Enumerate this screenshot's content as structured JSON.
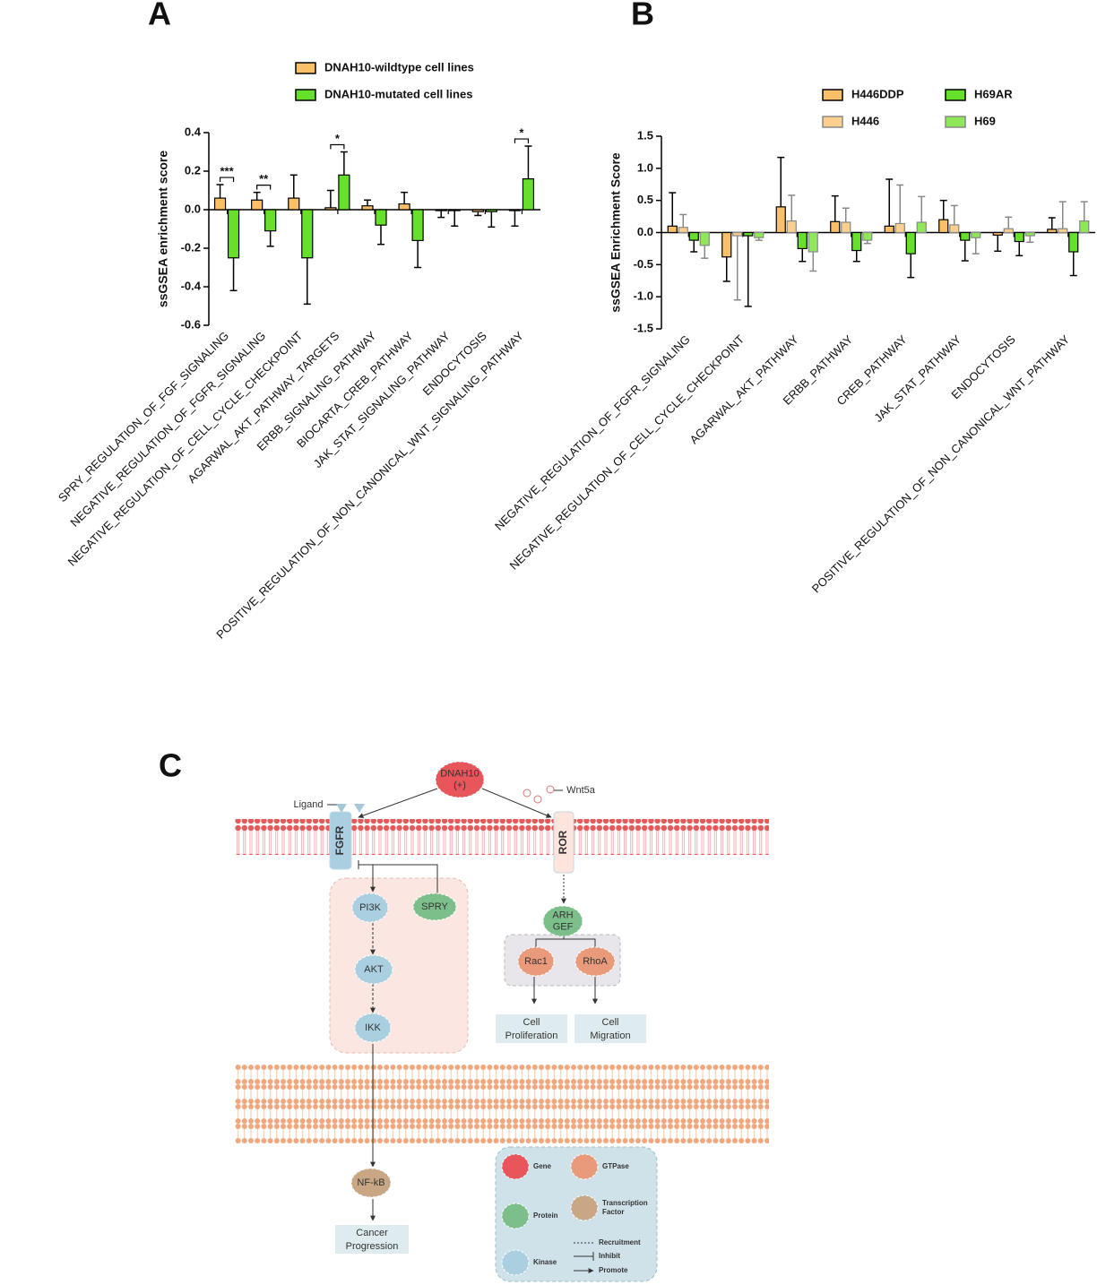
{
  "chart_data": [
    {
      "type": "bar",
      "panel": "A",
      "ylabel": "ssGSEA  enrichment score",
      "categories": [
        "SPRY_REGULATION_OF_FGF_SIGNALING",
        "NEGATIVE_REGULATION_OF_FGFR_SIGNALING",
        "NEGATIVE_REGULATION_OF_CELL_CYCLE_CHECKPOINT",
        "AGARWAL_AKT_PATHWAY_TARGETS",
        "ERBB_SIGNALING_PATHWAY",
        "BIOCARTA_CREB_PATHWAY",
        "JAK_STAT_SIGNALING_PATHWAY",
        "ENDOCYTOSIS",
        "POSITIVE_REGULATION_OF_NON_CANONICAL_WNT_SIGNALING_PATHWAY"
      ],
      "series": [
        {
          "name": "DNAH10-wildtype cell lines",
          "color": "#fbc067",
          "edgecolor": "#000000",
          "values": [
            0.06,
            0.05,
            0.06,
            0.01,
            0.02,
            0.03,
            -0.005,
            -0.01,
            -0.005
          ],
          "errors": [
            0.07,
            0.04,
            0.12,
            0.09,
            0.03,
            0.06,
            0.035,
            0.02,
            0.08
          ]
        },
        {
          "name": "DNAH10-mutated cell lines",
          "color": "#66e02a",
          "edgecolor": "#000000",
          "values": [
            -0.25,
            -0.11,
            -0.25,
            0.18,
            -0.08,
            -0.16,
            -0.005,
            -0.01,
            0.16
          ],
          "errors": [
            0.17,
            0.08,
            0.24,
            0.12,
            0.1,
            0.14,
            0.08,
            0.08,
            0.17
          ]
        }
      ],
      "significance": [
        "***",
        "**",
        null,
        "*",
        null,
        null,
        null,
        null,
        "*"
      ],
      "ylim": [
        -0.6,
        0.4
      ],
      "yticks": [
        -0.6,
        -0.4,
        -0.2,
        {
          "value": 0,
          "label": "0.0"
        },
        0.2,
        0.4
      ]
    },
    {
      "type": "bar",
      "panel": "B",
      "ylabel": "ssGSEA  Enrichment Score",
      "categories": [
        "NEGATIVE_REGULATION_OF_FGFR_SIGNALING",
        "NEGATIVE_REGULATION_OF_CELL_CYCLE_CHECKPOINT",
        "AGARWAL_AKT_PATHWAY",
        "ERBB_PATHWAY",
        "CREB_PATHWAY",
        "JAK_STAT_PATHWAY",
        "ENDOCYTOSIS",
        "POSITIVE_REGULATION_OF_NON_CANONICAL_WNT_PATHWAY"
      ],
      "series": [
        {
          "name": "H446DDP",
          "color": "#fbc067",
          "edgecolor": "#000000",
          "values": [
            0.1,
            -0.38,
            0.4,
            0.17,
            0.1,
            0.2,
            -0.04,
            0.05
          ],
          "errors": [
            0.52,
            0.38,
            0.77,
            0.4,
            0.73,
            0.3,
            0.25,
            0.18
          ]
        },
        {
          "name": "H446",
          "color": "#fbd08f",
          "edgecolor": "#888888",
          "values": [
            0.08,
            -0.05,
            0.18,
            0.16,
            0.14,
            0.12,
            0.06,
            0.06
          ],
          "errors": [
            0.2,
            1.0,
            0.4,
            0.22,
            0.6,
            0.3,
            0.18,
            0.42
          ]
        },
        {
          "name": "H69AR",
          "color": "#66e02a",
          "edgecolor": "#000000",
          "values": [
            -0.12,
            -0.05,
            -0.25,
            -0.28,
            -0.33,
            -0.12,
            -0.14,
            -0.3
          ],
          "errors": [
            0.18,
            1.1,
            0.2,
            0.17,
            0.37,
            0.32,
            0.22,
            0.37
          ]
        },
        {
          "name": "H69",
          "color": "#8fe85a",
          "edgecolor": "#888888",
          "values": [
            -0.2,
            -0.08,
            -0.3,
            -0.12,
            0.16,
            -0.08,
            -0.05,
            0.18
          ],
          "errors": [
            0.2,
            0.04,
            0.3,
            0.05,
            0.4,
            0.25,
            0.1,
            0.3
          ]
        }
      ],
      "ylim": [
        -1.5,
        1.5
      ],
      "yticks": [
        -1.5,
        {
          "value": -1,
          "label": "-1.0"
        },
        -0.5,
        {
          "value": 0,
          "label": "0.0"
        },
        0.5,
        {
          "value": 1,
          "label": "1.0"
        },
        1.5
      ]
    }
  ],
  "diagram": {
    "panel": "C",
    "nodes": [
      {
        "label": [
          "DNAH10",
          "(+)"
        ],
        "kind": "gene"
      },
      {
        "label": [
          "FGFR"
        ],
        "kind": "receptor"
      },
      {
        "label": [
          "ROR"
        ],
        "kind": "receptor2"
      },
      {
        "label": [
          "PI3K"
        ],
        "kind": "kinase"
      },
      {
        "label": [
          "SPRY"
        ],
        "kind": "protein"
      },
      {
        "label": [
          "AKT"
        ],
        "kind": "kinase"
      },
      {
        "label": [
          "IKK"
        ],
        "kind": "kinase"
      },
      {
        "label": [
          "ARH",
          "GEF"
        ],
        "kind": "protein"
      },
      {
        "label": [
          "Rac1"
        ],
        "kind": "gtpase"
      },
      {
        "label": [
          "RhoA"
        ],
        "kind": "gtpase"
      },
      {
        "label": [
          "NF-kB"
        ],
        "kind": "tf"
      }
    ],
    "outcomes": [
      [
        "Cell",
        "Proliferation"
      ],
      [
        "Cell",
        "Migration"
      ],
      [
        "Cancer",
        "Progression"
      ]
    ],
    "ligands": [
      "Ligand",
      "Wnt5a"
    ],
    "legend": [
      "Gene",
      "GTPase",
      "Protein",
      [
        "Transcription",
        "Factor"
      ],
      "Kinase",
      "Recruitment",
      "Inhibit",
      "Promote"
    ]
  }
}
